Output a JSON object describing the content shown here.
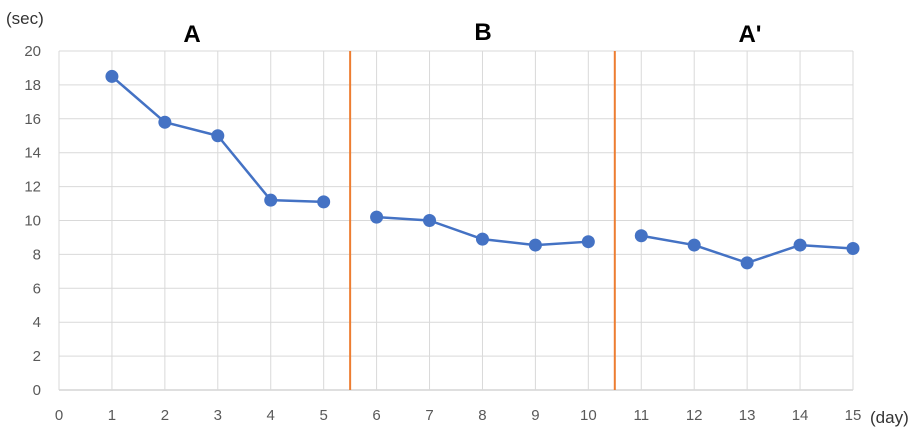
{
  "chart_data": {
    "type": "line",
    "ylabel": "(sec)",
    "xlabel": "(day)",
    "xlim": [
      0,
      15
    ],
    "ylim": [
      0,
      20
    ],
    "x_ticks": [
      0,
      1,
      2,
      3,
      4,
      5,
      6,
      7,
      8,
      9,
      10,
      11,
      12,
      13,
      14,
      15
    ],
    "y_ticks": [
      0,
      2,
      4,
      6,
      8,
      10,
      12,
      14,
      16,
      18,
      20
    ],
    "grid": true,
    "phase_dividers": [
      5.5,
      10.5
    ],
    "phases": [
      {
        "label": "A",
        "x": [
          1,
          2,
          3,
          4,
          5
        ],
        "y": [
          18.5,
          15.8,
          15.0,
          11.2,
          11.1
        ]
      },
      {
        "label": "B",
        "x": [
          6,
          7,
          8,
          9,
          10
        ],
        "y": [
          10.2,
          10.0,
          8.9,
          8.55,
          8.75
        ]
      },
      {
        "label": "A'",
        "x": [
          11,
          12,
          13,
          14,
          15
        ],
        "y": [
          9.1,
          8.55,
          7.5,
          8.55,
          8.35
        ]
      }
    ],
    "colors": {
      "line": "#4472c4",
      "marker": "#4472c4",
      "divider": "#ed7d31",
      "grid": "#d9d9d9"
    }
  }
}
